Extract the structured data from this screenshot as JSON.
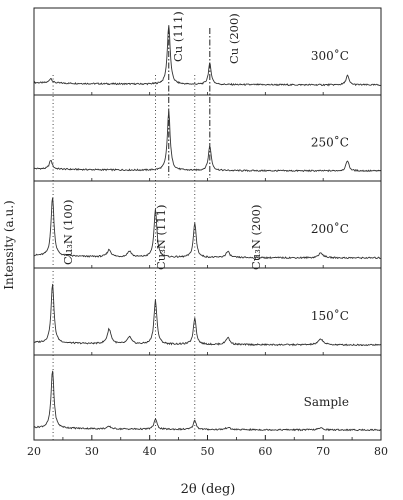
{
  "chart_data": {
    "type": "line",
    "title": "",
    "xlabel": "2θ (deg)",
    "ylabel": "Intensity (a.u.)",
    "xlim": [
      20,
      80
    ],
    "xticks": [
      20,
      30,
      40,
      50,
      60,
      70,
      80
    ],
    "stacked_panels": true,
    "grid": false,
    "reference_lines": [
      {
        "x": 23.3,
        "style": "dotted"
      },
      {
        "x": 41.0,
        "style": "dotted"
      },
      {
        "x": 47.8,
        "style": "dotted"
      },
      {
        "x": 43.3,
        "style": "dash-dot"
      },
      {
        "x": 50.4,
        "style": "dash-dot"
      }
    ],
    "peak_labels": [
      {
        "text": "Cu (111)",
        "x": 43.3
      },
      {
        "text": "Cu (200)",
        "x": 50.4
      },
      {
        "text": "Cu₃N (100)",
        "x": 23.3
      },
      {
        "text": "Cu₃N (111)",
        "x": 41.0
      },
      {
        "text": "Cu₃N (200)",
        "x": 47.8
      }
    ],
    "series": [
      {
        "name": "300˚C",
        "peaks": [
          [
            22.9,
            0.08,
            0.3
          ],
          [
            43.3,
            1.0,
            0.3
          ],
          [
            50.4,
            0.35,
            0.3
          ],
          [
            74.2,
            0.16,
            0.3
          ]
        ]
      },
      {
        "name": "250˚C",
        "peaks": [
          [
            22.9,
            0.15,
            0.3
          ],
          [
            43.3,
            1.0,
            0.3
          ],
          [
            50.4,
            0.42,
            0.3
          ],
          [
            74.2,
            0.18,
            0.3
          ]
        ]
      },
      {
        "name": "200˚C",
        "peaks": [
          [
            23.2,
            1.0,
            0.3
          ],
          [
            33.0,
            0.12,
            0.4
          ],
          [
            36.5,
            0.1,
            0.4
          ],
          [
            41.0,
            0.8,
            0.3
          ],
          [
            47.8,
            0.58,
            0.3
          ],
          [
            53.5,
            0.1,
            0.4
          ],
          [
            69.6,
            0.08,
            0.5
          ]
        ]
      },
      {
        "name": "150˚C",
        "peaks": [
          [
            23.2,
            1.0,
            0.3
          ],
          [
            33.0,
            0.25,
            0.4
          ],
          [
            36.5,
            0.12,
            0.4
          ],
          [
            41.0,
            0.75,
            0.3
          ],
          [
            47.8,
            0.45,
            0.3
          ],
          [
            53.5,
            0.12,
            0.4
          ],
          [
            69.6,
            0.1,
            0.5
          ]
        ]
      },
      {
        "name": "Sample",
        "peaks": [
          [
            23.2,
            1.0,
            0.3
          ],
          [
            33.0,
            0.04,
            0.4
          ],
          [
            41.0,
            0.18,
            0.3
          ],
          [
            47.8,
            0.16,
            0.3
          ],
          [
            53.5,
            0.04,
            0.4
          ],
          [
            69.6,
            0.03,
            0.5
          ]
        ]
      }
    ]
  }
}
